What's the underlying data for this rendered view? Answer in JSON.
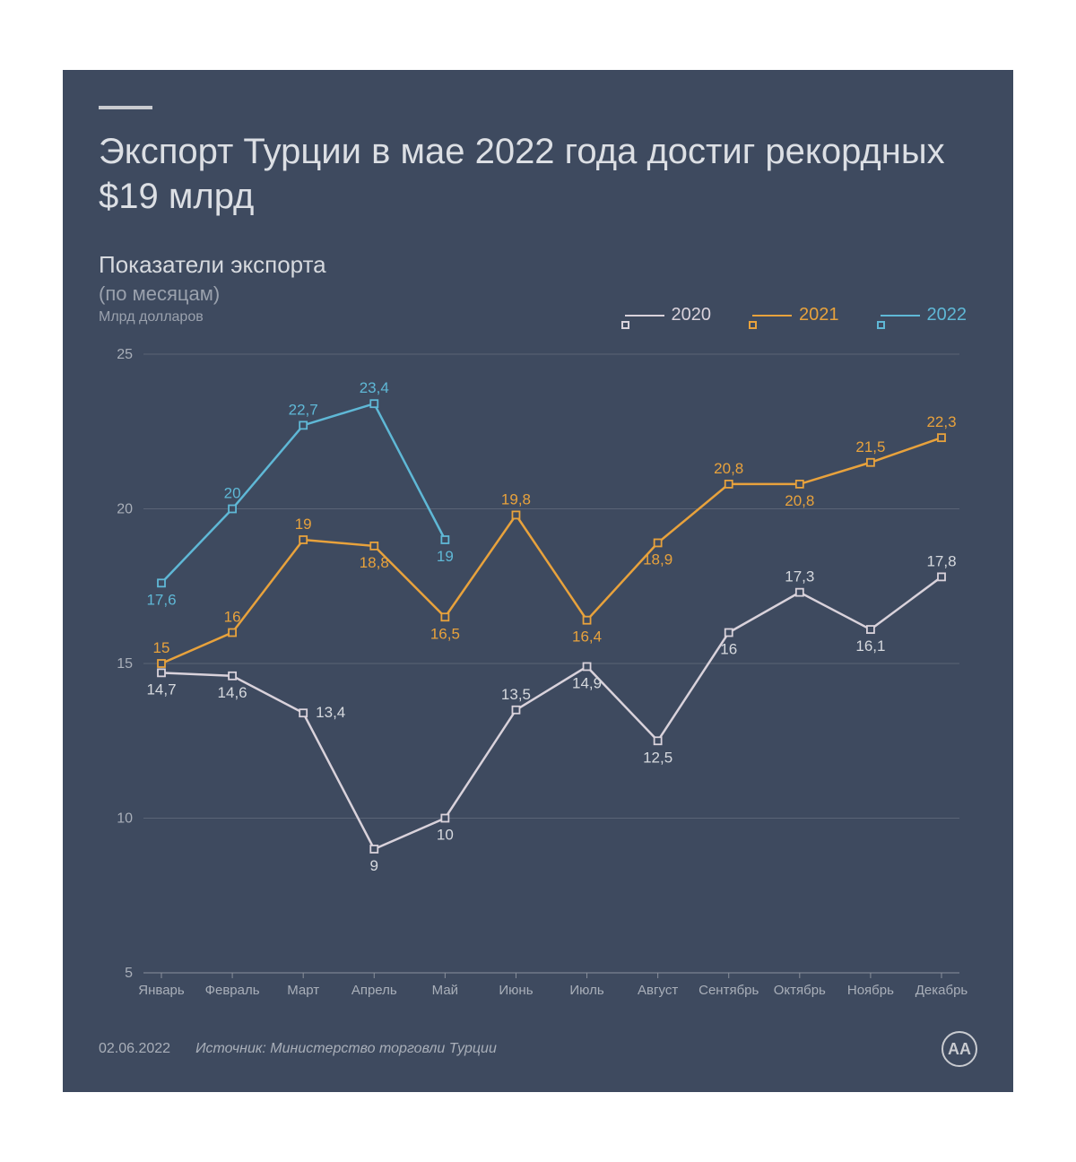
{
  "background_color": "#3e4a5f",
  "text_color": "#d6d9de",
  "muted_color": "#9aa1ad",
  "title": "Экспорт Турции в мае 2022 года достиг рекордных $19 млрд",
  "title_fontsize": 40,
  "subtitle": "Показатели экспорта",
  "subtitle2": "(по месяцам)",
  "unit": "Млрд долларов",
  "date": "02.06.2022",
  "source": "Источник: Министерство торговли Турции",
  "logo_text": "AA",
  "chart": {
    "type": "line",
    "months": [
      "Январь",
      "Февраль",
      "Март",
      "Апрель",
      "Май",
      "Июнь",
      "Июль",
      "Август",
      "Сентябрь",
      "Октябрь",
      "Ноябрь",
      "Декабрь"
    ],
    "ylim": [
      5,
      25
    ],
    "ytick_step": 5,
    "yticks": [
      5,
      10,
      15,
      20,
      25
    ],
    "grid_color": "#5a6476",
    "axis_color": "#8a909c",
    "label_fontsize": 16,
    "value_label_fontsize": 17,
    "marker_size": 8,
    "line_width": 2.5,
    "series": [
      {
        "name": "2020",
        "color": "#d9d2db",
        "values": [
          14.7,
          14.6,
          13.4,
          9,
          10,
          13.5,
          14.9,
          12.5,
          16,
          17.3,
          16.1,
          17.8
        ],
        "labels": [
          "14,7",
          "14,6",
          "13,4",
          "9",
          "10",
          "13,5",
          "14,9",
          "12,5",
          "16",
          "17,3",
          "16,1",
          "17,8"
        ],
        "label_pos": [
          "below",
          "below",
          "right",
          "below",
          "below",
          "above",
          "below",
          "below",
          "below",
          "above",
          "below",
          "above"
        ]
      },
      {
        "name": "2021",
        "color": "#e8a23c",
        "values": [
          15,
          16,
          19,
          18.8,
          16.5,
          19.8,
          16.4,
          18.9,
          20.8,
          20.8,
          21.5,
          22.3
        ],
        "labels": [
          "15",
          "16",
          "19",
          "18,8",
          "16,5",
          "19,8",
          "16,4",
          "18,9",
          "20,8",
          "20,8",
          "21,5",
          "22,3"
        ],
        "label_pos": [
          "above",
          "above",
          "above",
          "below",
          "below",
          "above",
          "below",
          "below",
          "above",
          "below",
          "above",
          "above"
        ]
      },
      {
        "name": "2022",
        "color": "#5fb8d6",
        "values": [
          17.6,
          20,
          22.7,
          23.4,
          19
        ],
        "labels": [
          "17,6",
          "20",
          "22,7",
          "23,4",
          "19"
        ],
        "label_pos": [
          "below",
          "above",
          "above",
          "above",
          "below"
        ]
      }
    ]
  },
  "legend": [
    {
      "label": "2020",
      "color": "#d9d2db"
    },
    {
      "label": "2021",
      "color": "#e8a23c"
    },
    {
      "label": "2022",
      "color": "#5fb8d6"
    }
  ]
}
